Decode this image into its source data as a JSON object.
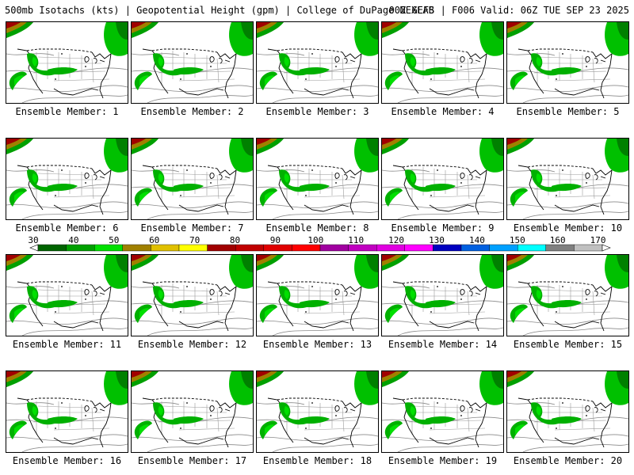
{
  "header": {
    "title_left": "500mb Isotachs (kts) | Geopotential Height (gpm) | College of DuPage NEXLAB",
    "title_right": "00Z GEFS | F006 Valid: 06Z TUE SEP 23 2025"
  },
  "panels": [
    {
      "caption": "Ensemble Member: 1"
    },
    {
      "caption": "Ensemble Member: 2"
    },
    {
      "caption": "Ensemble Member: 3"
    },
    {
      "caption": "Ensemble Member: 4"
    },
    {
      "caption": "Ensemble Member: 5"
    },
    {
      "caption": "Ensemble Member: 6"
    },
    {
      "caption": "Ensemble Member: 7"
    },
    {
      "caption": "Ensemble Member: 8"
    },
    {
      "caption": "Ensemble Member: 9"
    },
    {
      "caption": "Ensemble Member: 10"
    },
    {
      "caption": "Ensemble Member: 11"
    },
    {
      "caption": "Ensemble Member: 12"
    },
    {
      "caption": "Ensemble Member: 13"
    },
    {
      "caption": "Ensemble Member: 14"
    },
    {
      "caption": "Ensemble Member: 15"
    },
    {
      "caption": "Ensemble Member: 16"
    },
    {
      "caption": "Ensemble Member: 17"
    },
    {
      "caption": "Ensemble Member: 18"
    },
    {
      "caption": "Ensemble Member: 19"
    },
    {
      "caption": "Ensemble Member: 20"
    }
  ],
  "colorbar": {
    "ticks": [
      "30",
      "40",
      "50",
      "60",
      "70",
      "80",
      "90",
      "100",
      "110",
      "120",
      "130",
      "140",
      "150",
      "160",
      "170"
    ],
    "colors": [
      "#006400",
      "#00a000",
      "#00e000",
      "#a08000",
      "#e0c000",
      "#ffff00",
      "#a00000",
      "#c00000",
      "#e00000",
      "#ff0000",
      "#a000a0",
      "#c000c0",
      "#e000e0",
      "#ff00ff",
      "#0000c0",
      "#0060e0",
      "#00a0ff",
      "#00ffff",
      "#808080",
      "#c0c0c0"
    ]
  }
}
